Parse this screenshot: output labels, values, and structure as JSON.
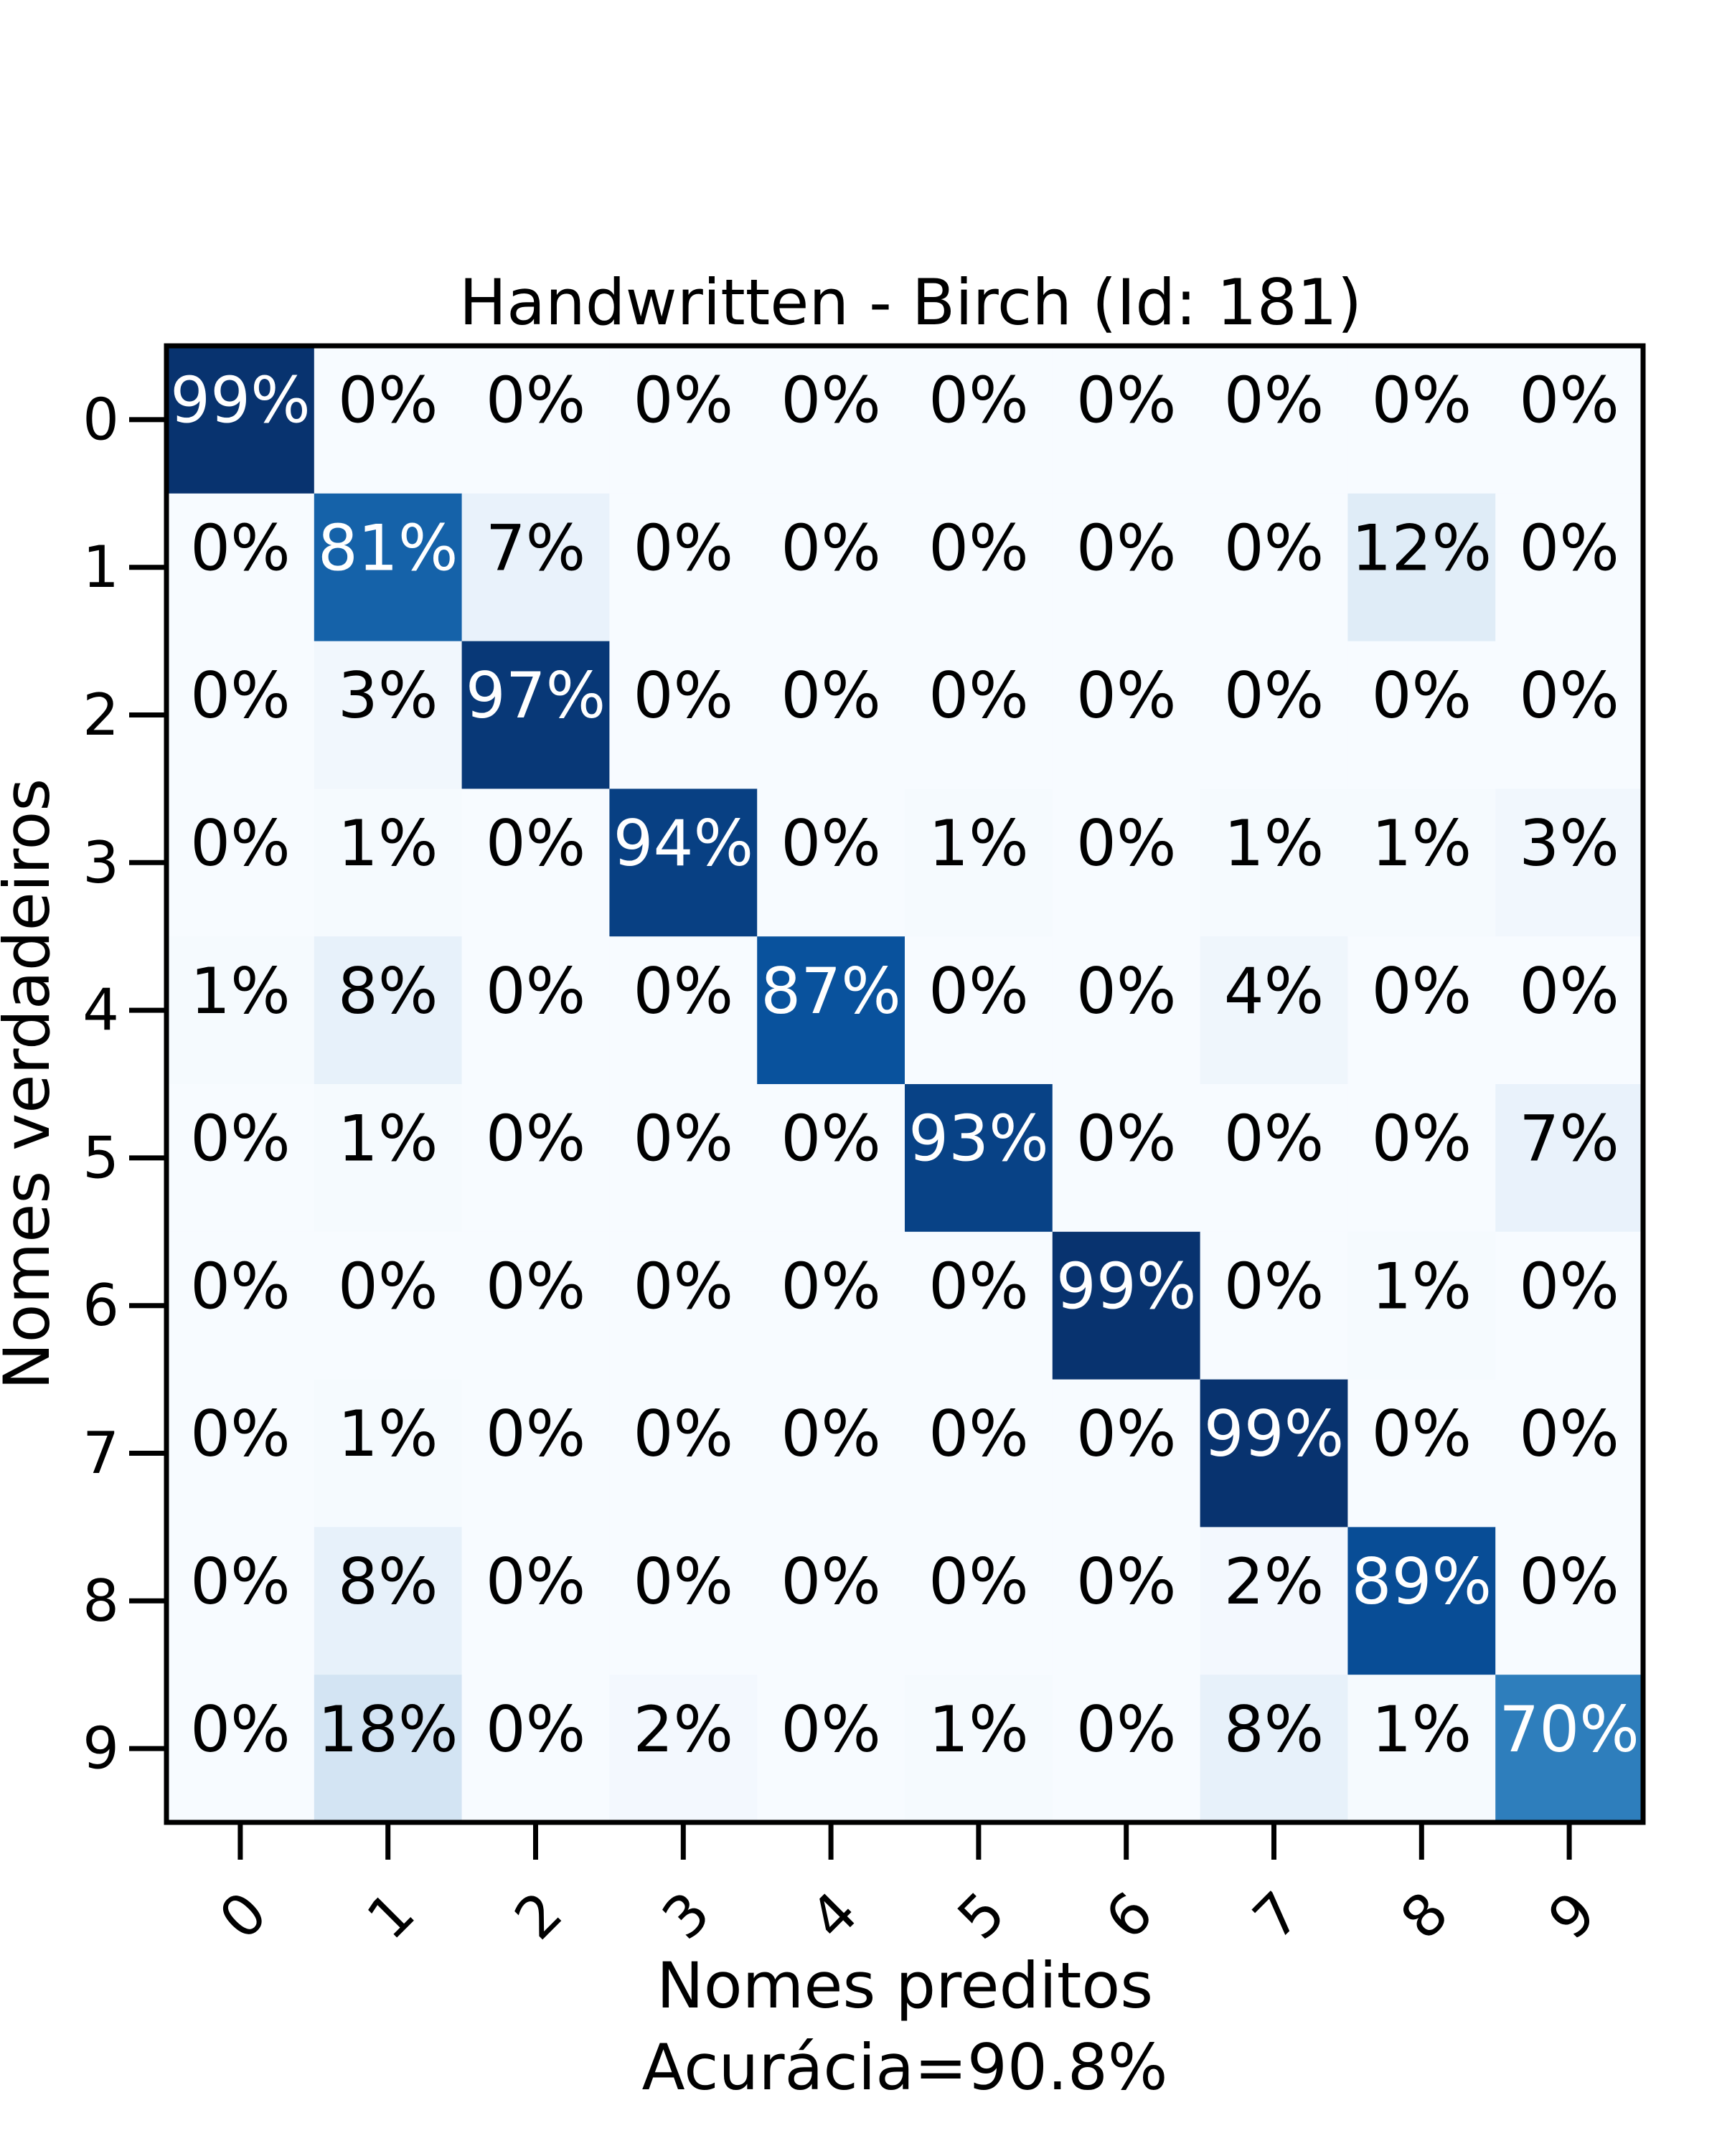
{
  "chart_data": {
    "type": "heatmap",
    "title": "Handwritten - Birch (Id: 181)",
    "xlabel": "Nomes preditos",
    "xlabel_sub": "Acurácia=90.8%",
    "ylabel": "Nomes verdadeiros",
    "x_categories": [
      "0",
      "1",
      "2",
      "3",
      "4",
      "5",
      "6",
      "7",
      "8",
      "9"
    ],
    "y_categories": [
      "0",
      "1",
      "2",
      "3",
      "4",
      "5",
      "6",
      "7",
      "8",
      "9"
    ],
    "values": [
      [
        99,
        0,
        0,
        0,
        0,
        0,
        0,
        0,
        0,
        0
      ],
      [
        0,
        81,
        7,
        0,
        0,
        0,
        0,
        0,
        12,
        0
      ],
      [
        0,
        3,
        97,
        0,
        0,
        0,
        0,
        0,
        0,
        0
      ],
      [
        0,
        1,
        0,
        94,
        0,
        1,
        0,
        1,
        1,
        3
      ],
      [
        1,
        8,
        0,
        0,
        87,
        0,
        0,
        4,
        0,
        0
      ],
      [
        0,
        1,
        0,
        0,
        0,
        93,
        0,
        0,
        0,
        7
      ],
      [
        0,
        0,
        0,
        0,
        0,
        0,
        99,
        0,
        1,
        0
      ],
      [
        0,
        1,
        0,
        0,
        0,
        0,
        0,
        99,
        0,
        0
      ],
      [
        0,
        8,
        0,
        0,
        0,
        0,
        0,
        2,
        89,
        0
      ],
      [
        0,
        18,
        0,
        2,
        0,
        1,
        0,
        8,
        1,
        70
      ]
    ],
    "value_suffix": "%",
    "colormap": "Blues",
    "vmin": 0,
    "vmax": 100,
    "grid": false,
    "legend": "none"
  }
}
